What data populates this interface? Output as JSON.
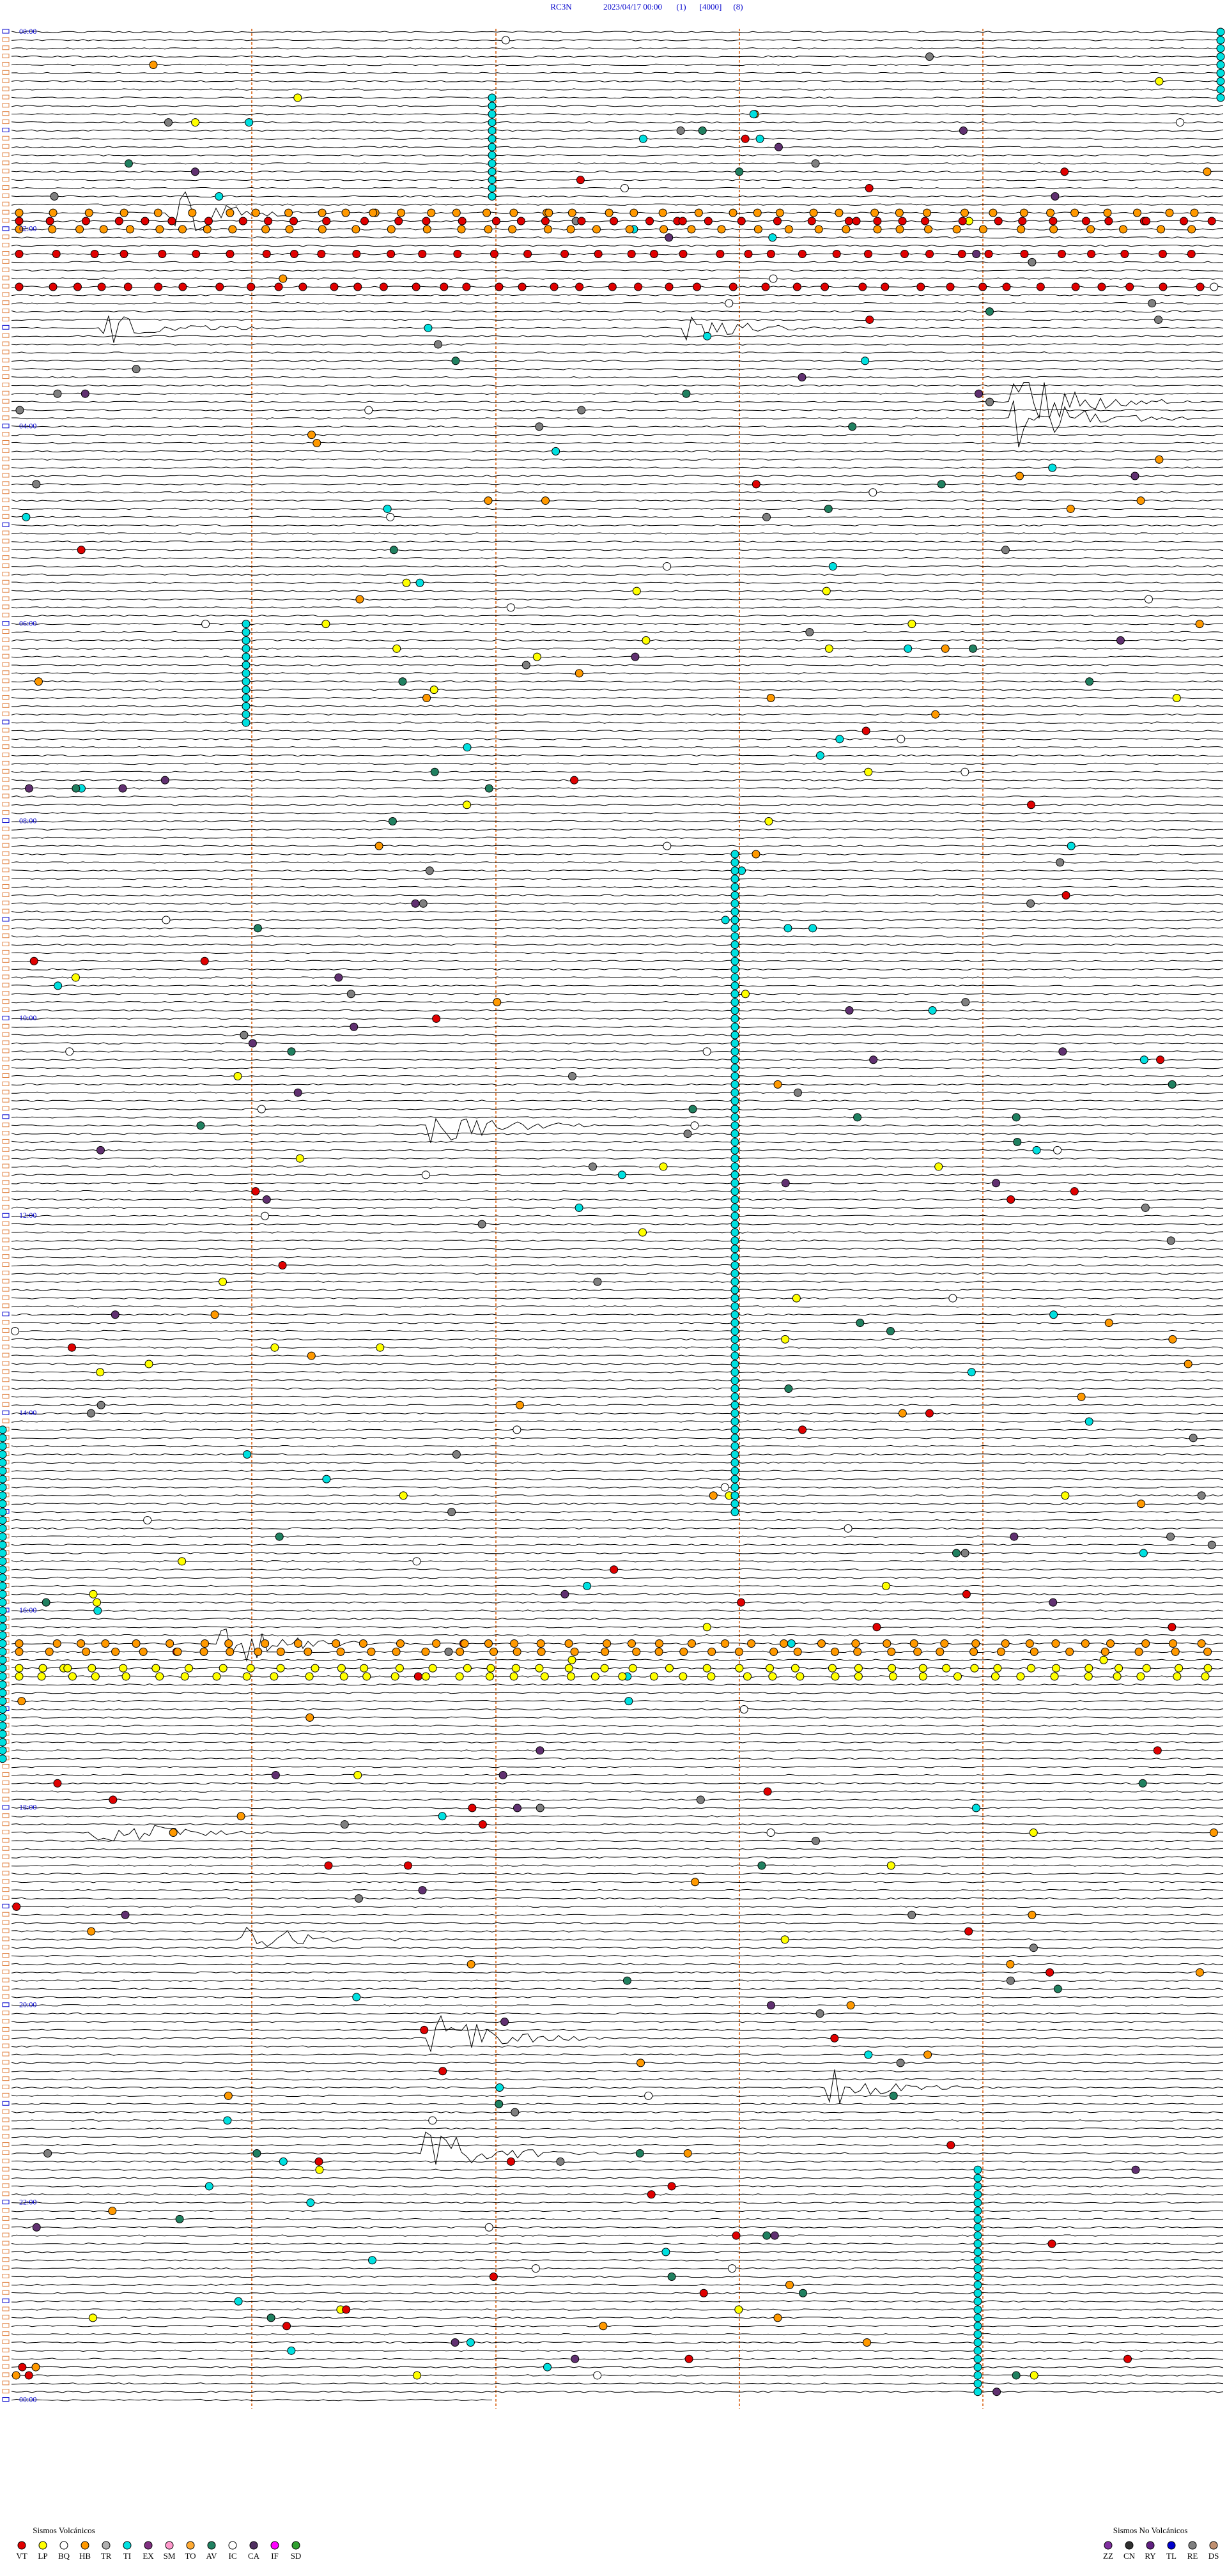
{
  "header": {
    "station": "RC3N",
    "datetime": "2023/04/17 00:00",
    "channel": "(1)",
    "scale": "[4000]",
    "filter": "(8)"
  },
  "hour_labels": [
    "00:00",
    "02:00",
    "04:00",
    "06:00",
    "08:00",
    "10:00",
    "12:00",
    "14:00",
    "16:00",
    "18:00",
    "20:00",
    "22:00",
    "00:00"
  ],
  "legend_volcanic": {
    "title": "Sismos Volcánicos",
    "items": [
      {
        "code": "VT",
        "color": "#e00000"
      },
      {
        "code": "LP",
        "color": "#ffff00"
      },
      {
        "code": "BQ",
        "color": "#ffffff"
      },
      {
        "code": "HB",
        "color": "#ff9900"
      },
      {
        "code": "TR",
        "color": "#b0b0b0"
      },
      {
        "code": "TI",
        "color": "#00e0e0"
      },
      {
        "code": "EX",
        "color": "#803080"
      },
      {
        "code": "SM",
        "color": "#ff99cc"
      },
      {
        "code": "TO",
        "color": "#ffaa33"
      },
      {
        "code": "AV",
        "color": "#208060"
      },
      {
        "code": "IC",
        "color": "#ffffff"
      },
      {
        "code": "CA",
        "color": "#503060"
      },
      {
        "code": "IF",
        "color": "#ff00ff"
      },
      {
        "code": "SD",
        "color": "#30a030"
      }
    ]
  },
  "legend_nonvolcanic": {
    "title": "Sismos No Volcánicos",
    "items": [
      {
        "code": "ZZ",
        "color": "#8030a0"
      },
      {
        "code": "CN",
        "color": "#303030"
      },
      {
        "code": "RY",
        "color": "#602080"
      },
      {
        "code": "TL",
        "color": "#0000cc"
      },
      {
        "code": "RE",
        "color": "#808080"
      },
      {
        "code": "DS",
        "color": "#c09070"
      }
    ]
  }
}
